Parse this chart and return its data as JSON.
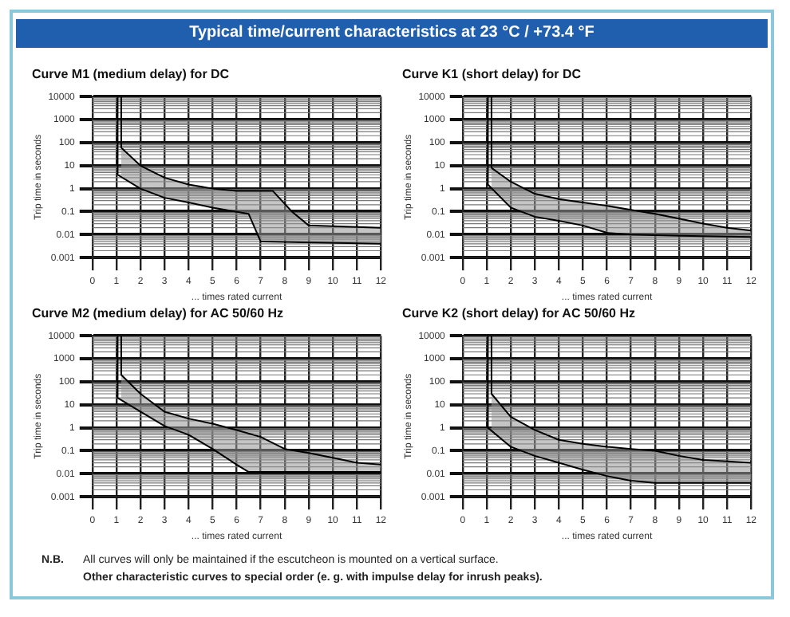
{
  "chart_data": [
    {
      "type": "other",
      "title": "Typical time/current characteristics at 23 °C / +73.4 °F"
    },
    {
      "type": "line",
      "title": "Curve M1 (medium delay) for DC",
      "xlabel": "... times rated current",
      "ylabel": "Trip time in seconds",
      "log": "y",
      "grid": true,
      "legend": false,
      "marker": "none",
      "line_style": "solid",
      "xlim": [
        0,
        12
      ],
      "xticks": [
        0,
        1,
        2,
        3,
        4,
        5,
        6,
        7,
        8,
        9,
        10,
        11,
        12
      ],
      "ylim": [
        0.001,
        10000
      ],
      "yticks": [
        {
          "value": 0.001,
          "label": "0.001"
        },
        {
          "value": 0.01,
          "label": "0.01"
        },
        {
          "value": 0.1,
          "label": "0.1"
        },
        1,
        10,
        100,
        1000,
        10000
      ],
      "series": [
        {
          "color": "#000000",
          "x": [
            1.2,
            1.2,
            2,
            3,
            4,
            5,
            6,
            7.5,
            8.3,
            9,
            12
          ],
          "values": [
            10000,
            60,
            10,
            3,
            1.5,
            1,
            0.8,
            0.8,
            0.1,
            0.025,
            0.02
          ]
        },
        {
          "color": "#000000",
          "x": [
            1.05,
            1.05,
            2,
            3,
            4,
            5,
            6.5,
            7,
            12
          ],
          "values": [
            10000,
            4,
            1,
            0.4,
            0.25,
            0.15,
            0.08,
            0.005,
            0.004
          ]
        }
      ]
    },
    {
      "type": "line",
      "title": "Curve K1 (short delay) for DC",
      "xlabel": "... times rated current",
      "ylabel": "Trip time in seconds",
      "log": "y",
      "grid": true,
      "legend": false,
      "marker": "none",
      "line_style": "solid",
      "xlim": [
        0,
        12
      ],
      "xticks": [
        0,
        1,
        2,
        3,
        4,
        5,
        6,
        7,
        8,
        9,
        10,
        11,
        12
      ],
      "ylim": [
        0.001,
        10000
      ],
      "yticks": [
        {
          "value": 0.001,
          "label": "0.001"
        },
        {
          "value": 0.01,
          "label": "0.01"
        },
        {
          "value": 0.1,
          "label": "0.1"
        },
        1,
        10,
        100,
        1000,
        10000
      ],
      "series": [
        {
          "color": "#000000",
          "x": [
            1.2,
            1.2,
            2,
            3,
            4,
            5,
            6,
            7,
            8,
            9,
            10,
            11,
            12
          ],
          "values": [
            10000,
            8,
            2,
            0.6,
            0.35,
            0.25,
            0.18,
            0.12,
            0.08,
            0.05,
            0.03,
            0.02,
            0.015
          ]
        },
        {
          "color": "#000000",
          "x": [
            1.05,
            1.05,
            2,
            3,
            4,
            5,
            6,
            7,
            9,
            12
          ],
          "values": [
            10000,
            1.5,
            0.15,
            0.06,
            0.04,
            0.025,
            0.012,
            0.01,
            0.009,
            0.008
          ]
        }
      ]
    },
    {
      "type": "line",
      "title": "Curve M2 (medium delay) for AC 50/60 Hz",
      "xlabel": "... times rated current",
      "ylabel": "Trip time in seconds",
      "log": "y",
      "grid": true,
      "legend": false,
      "marker": "none",
      "line_style": "solid",
      "xlim": [
        0,
        12
      ],
      "xticks": [
        0,
        1,
        2,
        3,
        4,
        5,
        6,
        7,
        8,
        9,
        10,
        11,
        12
      ],
      "ylim": [
        0.001,
        10000
      ],
      "yticks": [
        {
          "value": 0.001,
          "label": "0.001"
        },
        {
          "value": 0.01,
          "label": "0.01"
        },
        {
          "value": 0.1,
          "label": "0.1"
        },
        1,
        10,
        100,
        1000,
        10000
      ],
      "series": [
        {
          "color": "#000000",
          "x": [
            1.2,
            1.2,
            2,
            3,
            4,
            5,
            6,
            7,
            8,
            9,
            10,
            11,
            12
          ],
          "values": [
            10000,
            200,
            30,
            5,
            2.5,
            1.5,
            0.8,
            0.4,
            0.12,
            0.08,
            0.05,
            0.03,
            0.025
          ]
        },
        {
          "color": "#000000",
          "x": [
            1.05,
            1.05,
            2,
            3,
            4,
            5,
            6,
            6.5,
            12
          ],
          "values": [
            10000,
            20,
            5,
            1.2,
            0.5,
            0.12,
            0.025,
            0.012,
            0.012
          ]
        }
      ]
    },
    {
      "type": "line",
      "title": "Curve K2 (short delay) for AC 50/60 Hz",
      "xlabel": "... times rated current",
      "ylabel": "Trip time in seconds",
      "log": "y",
      "grid": true,
      "legend": false,
      "marker": "none",
      "line_style": "solid",
      "xlim": [
        0,
        12
      ],
      "xticks": [
        0,
        1,
        2,
        3,
        4,
        5,
        6,
        7,
        8,
        9,
        10,
        11,
        12
      ],
      "ylim": [
        0.001,
        10000
      ],
      "yticks": [
        {
          "value": 0.001,
          "label": "0.001"
        },
        {
          "value": 0.01,
          "label": "0.01"
        },
        {
          "value": 0.1,
          "label": "0.1"
        },
        1,
        10,
        100,
        1000,
        10000
      ],
      "series": [
        {
          "color": "#000000",
          "x": [
            1.2,
            1.2,
            2,
            3,
            4,
            5,
            6,
            7,
            8,
            9,
            10,
            11,
            12
          ],
          "values": [
            10000,
            30,
            3,
            0.8,
            0.3,
            0.2,
            0.15,
            0.12,
            0.1,
            0.06,
            0.04,
            0.035,
            0.03
          ]
        },
        {
          "color": "#000000",
          "x": [
            1.05,
            1.05,
            2,
            3,
            4,
            5,
            6,
            7,
            8,
            12
          ],
          "values": [
            10000,
            1,
            0.15,
            0.06,
            0.03,
            0.015,
            0.008,
            0.005,
            0.004,
            0.004
          ]
        }
      ]
    },
    {
      "type": "other",
      "annotations": [
        "N.B.",
        "All curves will only be maintained if the escutcheon is mounted on a vertical surface.",
        "Other characteristic curves to special order (e. g. with impulse delay for inrush peaks)."
      ]
    }
  ]
}
